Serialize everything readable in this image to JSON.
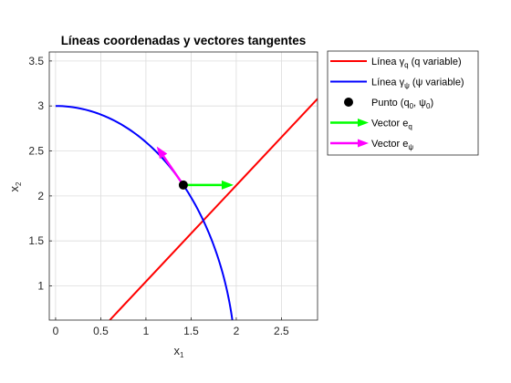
{
  "chart_data": {
    "type": "line",
    "title": "Líneas coordenadas y vectores tangentes",
    "xlabel": "x",
    "xlabel_sub": "1",
    "ylabel": "x",
    "ylabel_sub": "2",
    "xlim": [
      -0.07,
      2.9
    ],
    "ylim": [
      0.62,
      3.6
    ],
    "grid": true,
    "legend_position": "outside-right",
    "xticks": [
      0,
      0.5,
      1,
      1.5,
      2,
      2.5
    ],
    "xtick_labels": [
      "0",
      "0.5",
      "1",
      "1.5",
      "2",
      "2.5"
    ],
    "yticks": [
      1,
      1.5,
      2,
      2.5,
      3,
      3.5
    ],
    "ytick_labels": [
      "1",
      "1.5",
      "2",
      "2.5",
      "3",
      "3.5"
    ],
    "series": [
      {
        "key": "q_line",
        "name_main": "Línea ",
        "name_greek": "γ",
        "name_sub": "q",
        "name_suffix": " (q variable)",
        "color": "#ff0000",
        "kind": "line",
        "x": [
          0.6,
          2.9
        ],
        "y": [
          0.62,
          3.08
        ]
      },
      {
        "key": "psi_line",
        "name_main": "Línea ",
        "name_greek": "γ",
        "name_sub": "ψ",
        "name_suffix": " (ψ variable)",
        "color": "#0000ff",
        "kind": "ellipse-arc",
        "a": 2.0,
        "b": 3.0,
        "x": [
          0.0,
          0.5,
          1.0,
          1.2,
          1.414,
          1.6,
          1.8,
          1.9,
          1.95,
          1.98
        ],
        "y": [
          3.0,
          2.905,
          2.598,
          2.4,
          2.121,
          1.8,
          1.308,
          0.937,
          0.666,
          0.62
        ]
      },
      {
        "key": "point",
        "name_main": "Punto (q",
        "name_sub": "0",
        "name_mid": ", ψ",
        "name_sub2": "0",
        "name_suffix": ")",
        "color": "#000000",
        "kind": "marker",
        "x": [
          1.414
        ],
        "y": [
          2.121
        ]
      },
      {
        "key": "vec_q",
        "name_main": "Vector e",
        "name_sub": "q",
        "color": "#00ff00",
        "kind": "vector",
        "x": [
          1.414,
          1.97
        ],
        "y": [
          2.121,
          2.121
        ]
      },
      {
        "key": "vec_psi",
        "name_main": "Vector e",
        "name_sub": "ψ",
        "color": "#ff00ff",
        "kind": "vector",
        "x": [
          1.414,
          1.12
        ],
        "y": [
          2.121,
          2.55
        ]
      }
    ]
  }
}
